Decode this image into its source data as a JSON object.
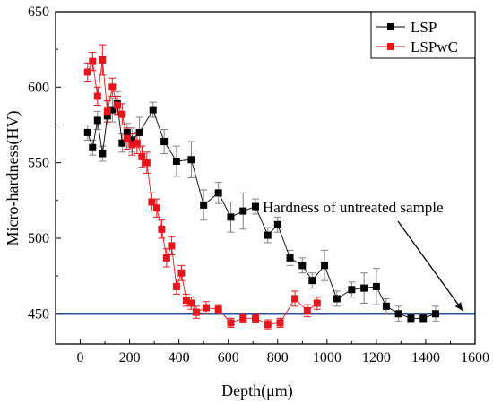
{
  "chart_data": {
    "type": "scatter",
    "xlabel": "Depth(μm)",
    "ylabel": "Micro-hardness(HV)",
    "xlim": [
      -100,
      1600
    ],
    "ylim": [
      430,
      650
    ],
    "x_ticks": [
      0,
      200,
      400,
      600,
      800,
      1000,
      1200,
      1400,
      1600
    ],
    "y_ticks": [
      450,
      500,
      550,
      600,
      650
    ],
    "legend_position": "top-right",
    "reference_line": {
      "y": 450,
      "color": "#2f4f9a",
      "label": "Hardness of untreated sample",
      "arrow_to": [
        1550,
        452
      ]
    },
    "series": [
      {
        "name": "LSP",
        "color": "#000000",
        "error_color": "#808080",
        "points": [
          {
            "x": 30,
            "y": 570,
            "e": 5
          },
          {
            "x": 50,
            "y": 560,
            "e": 5
          },
          {
            "x": 70,
            "y": 578,
            "e": 6
          },
          {
            "x": 90,
            "y": 556,
            "e": 5
          },
          {
            "x": 110,
            "y": 581,
            "e": 6
          },
          {
            "x": 130,
            "y": 585,
            "e": 8
          },
          {
            "x": 150,
            "y": 589,
            "e": 8
          },
          {
            "x": 170,
            "y": 563,
            "e": 6
          },
          {
            "x": 190,
            "y": 570,
            "e": 6
          },
          {
            "x": 210,
            "y": 565,
            "e": 8
          },
          {
            "x": 240,
            "y": 570,
            "e": 10
          },
          {
            "x": 295,
            "y": 585,
            "e": 5
          },
          {
            "x": 340,
            "y": 564,
            "e": 8
          },
          {
            "x": 390,
            "y": 551,
            "e": 10
          },
          {
            "x": 450,
            "y": 552,
            "e": 12
          },
          {
            "x": 500,
            "y": 522,
            "e": 10
          },
          {
            "x": 560,
            "y": 530,
            "e": 7
          },
          {
            "x": 610,
            "y": 514,
            "e": 10
          },
          {
            "x": 660,
            "y": 518,
            "e": 12
          },
          {
            "x": 710,
            "y": 521,
            "e": 5
          },
          {
            "x": 760,
            "y": 502,
            "e": 5
          },
          {
            "x": 800,
            "y": 509,
            "e": 5
          },
          {
            "x": 850,
            "y": 487,
            "e": 5
          },
          {
            "x": 900,
            "y": 482,
            "e": 5
          },
          {
            "x": 940,
            "y": 472,
            "e": 5
          },
          {
            "x": 990,
            "y": 482,
            "e": 10
          },
          {
            "x": 1040,
            "y": 460,
            "e": 5
          },
          {
            "x": 1100,
            "y": 466,
            "e": 5
          },
          {
            "x": 1150,
            "y": 467,
            "e": 10
          },
          {
            "x": 1200,
            "y": 468,
            "e": 12
          },
          {
            "x": 1240,
            "y": 455,
            "e": 5
          },
          {
            "x": 1290,
            "y": 450,
            "e": 5
          },
          {
            "x": 1340,
            "y": 447,
            "e": 3
          },
          {
            "x": 1390,
            "y": 447,
            "e": 3
          },
          {
            "x": 1440,
            "y": 450,
            "e": 5
          }
        ]
      },
      {
        "name": "LSPwC",
        "color": "#e8161c",
        "error_color": "#e8161c",
        "points": [
          {
            "x": 30,
            "y": 610,
            "e": 6
          },
          {
            "x": 50,
            "y": 617,
            "e": 6
          },
          {
            "x": 70,
            "y": 594,
            "e": 6
          },
          {
            "x": 90,
            "y": 618,
            "e": 10
          },
          {
            "x": 110,
            "y": 584,
            "e": 7
          },
          {
            "x": 130,
            "y": 600,
            "e": 6
          },
          {
            "x": 150,
            "y": 588,
            "e": 6
          },
          {
            "x": 170,
            "y": 582,
            "e": 7
          },
          {
            "x": 190,
            "y": 566,
            "e": 7
          },
          {
            "x": 210,
            "y": 562,
            "e": 7
          },
          {
            "x": 230,
            "y": 563,
            "e": 7
          },
          {
            "x": 250,
            "y": 554,
            "e": 7
          },
          {
            "x": 270,
            "y": 550,
            "e": 7
          },
          {
            "x": 290,
            "y": 524,
            "e": 6
          },
          {
            "x": 310,
            "y": 520,
            "e": 6
          },
          {
            "x": 330,
            "y": 506,
            "e": 6
          },
          {
            "x": 350,
            "y": 487,
            "e": 6
          },
          {
            "x": 370,
            "y": 495,
            "e": 6
          },
          {
            "x": 390,
            "y": 468,
            "e": 5
          },
          {
            "x": 410,
            "y": 477,
            "e": 5
          },
          {
            "x": 430,
            "y": 459,
            "e": 4
          },
          {
            "x": 450,
            "y": 457,
            "e": 4
          },
          {
            "x": 470,
            "y": 451,
            "e": 4
          },
          {
            "x": 510,
            "y": 454,
            "e": 4
          },
          {
            "x": 560,
            "y": 453,
            "e": 3
          },
          {
            "x": 610,
            "y": 444,
            "e": 3
          },
          {
            "x": 660,
            "y": 447,
            "e": 3
          },
          {
            "x": 710,
            "y": 447,
            "e": 3
          },
          {
            "x": 760,
            "y": 443,
            "e": 3
          },
          {
            "x": 810,
            "y": 444,
            "e": 3
          },
          {
            "x": 870,
            "y": 460,
            "e": 5
          },
          {
            "x": 920,
            "y": 452,
            "e": 4
          },
          {
            "x": 960,
            "y": 457,
            "e": 4
          }
        ]
      }
    ]
  }
}
